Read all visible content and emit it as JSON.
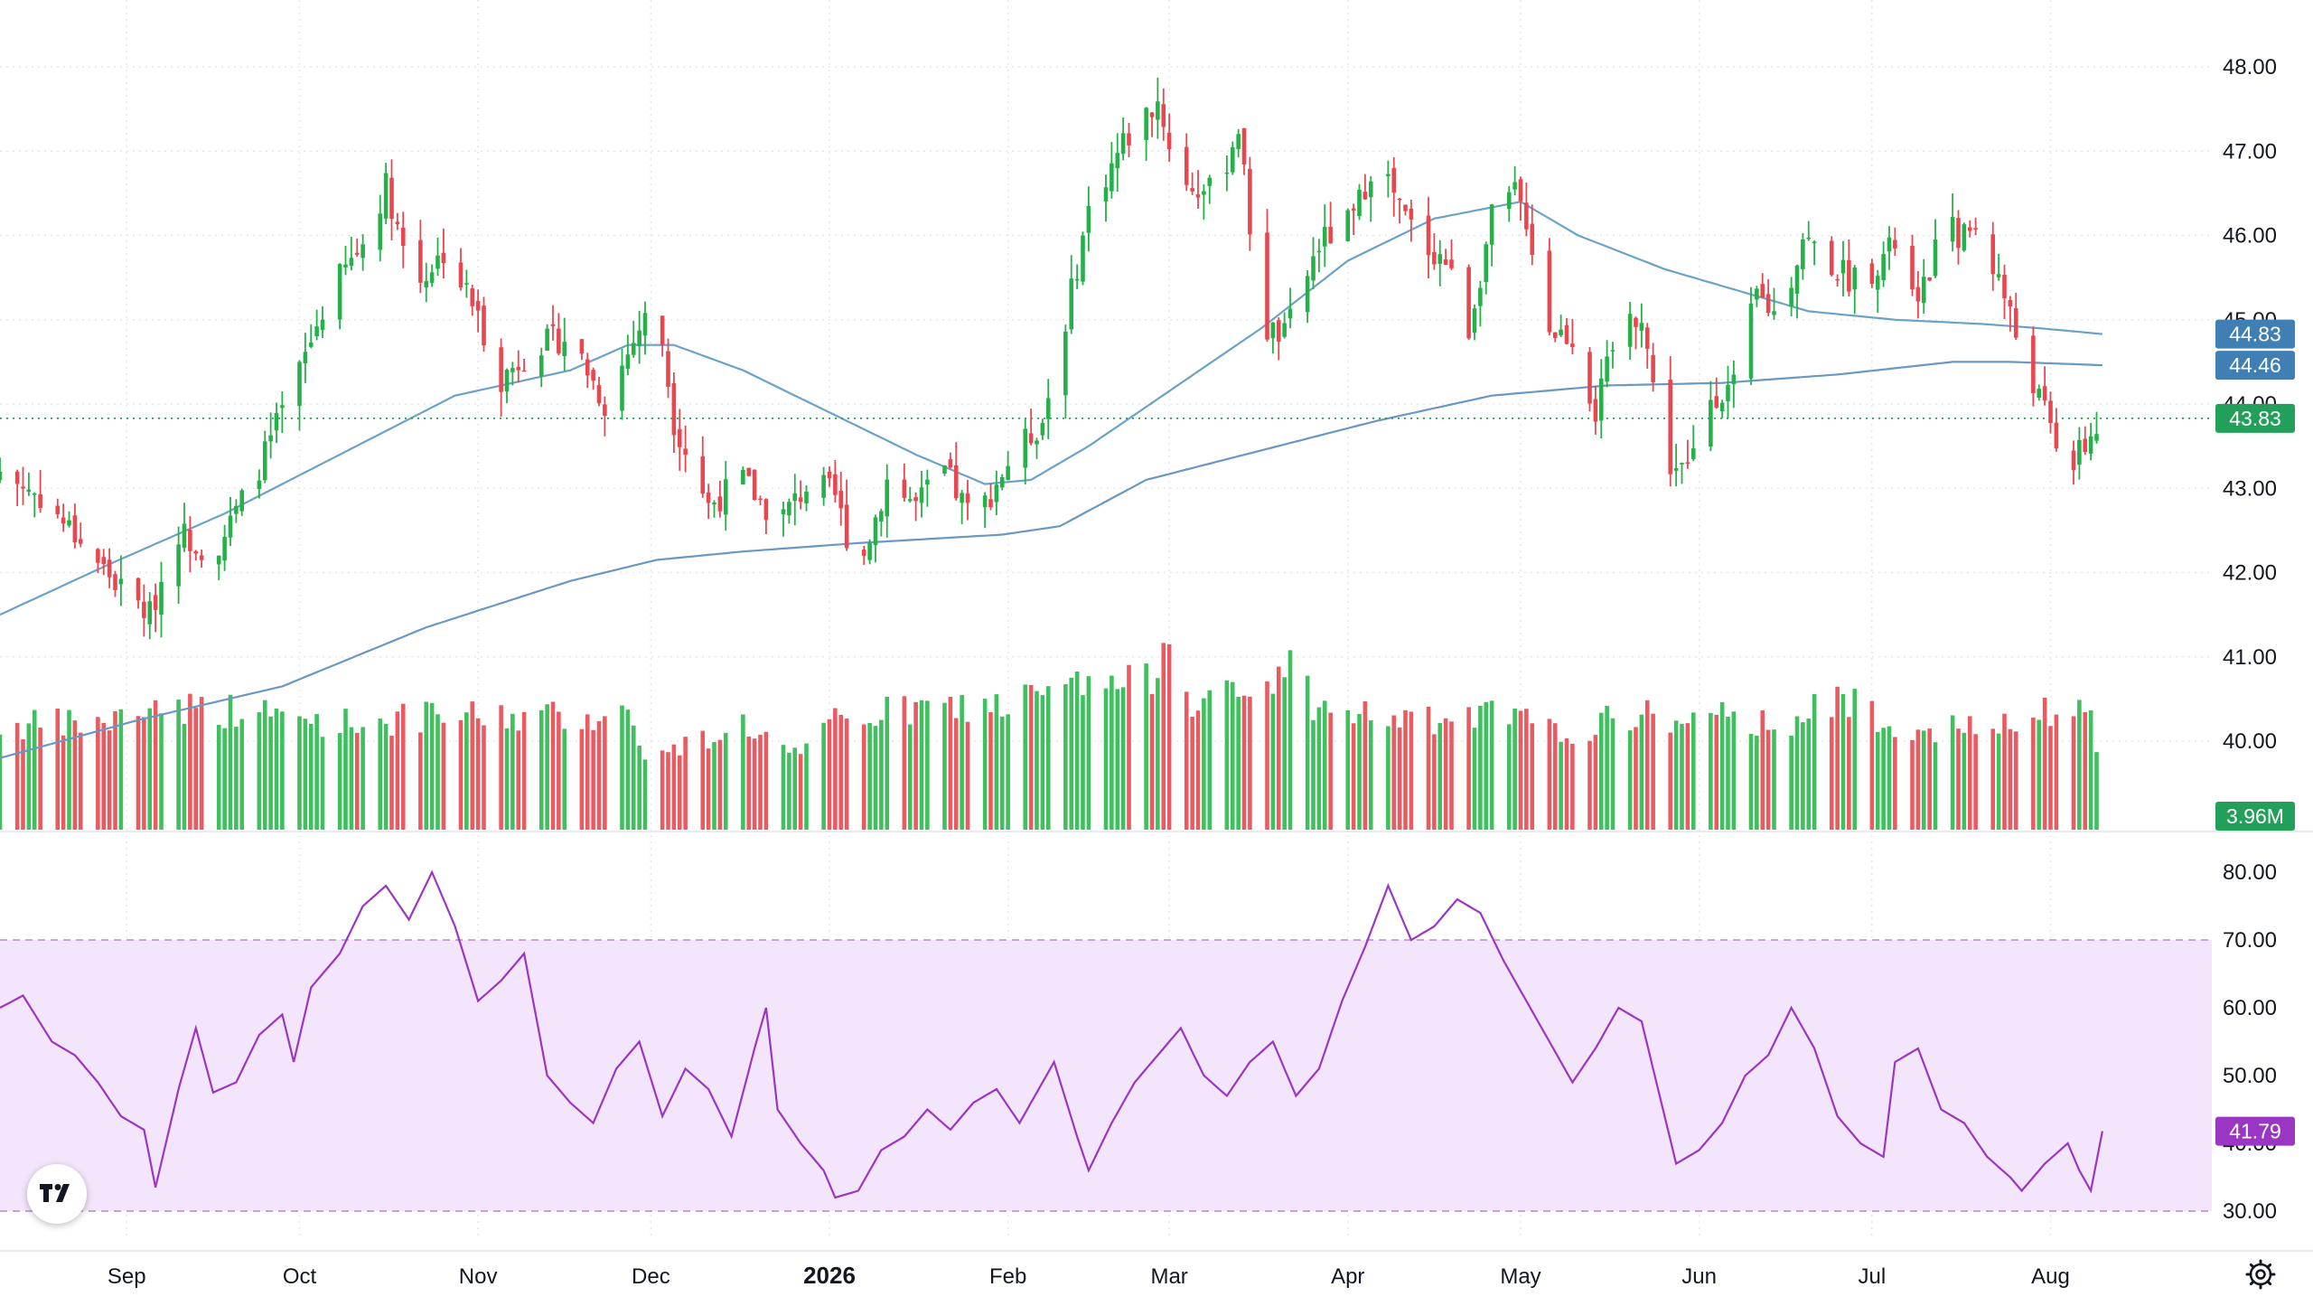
{
  "colors": {
    "up": "#26b04a",
    "down": "#e8474f",
    "ma_fast": "#6aa2c8",
    "ma_slow": "#6a98c2",
    "rsi_line": "#9b36c4",
    "rsi_band": "#f3e5fc",
    "last_price_badge": "#22a05a",
    "ma_fast_badge": "#3f7fb3",
    "ma_slow_badge": "#3f7fb3",
    "volume_badge": "#22a05a",
    "rsi_badge": "#9b36c4",
    "grid": "#e6e8ec"
  },
  "icons": {
    "logo": "tradingview-logo-icon",
    "settings": "settings-gear-icon"
  },
  "chart_data": {
    "type": "candlestick",
    "x_axis": {
      "labels": [
        {
          "text": "Sep",
          "day": 23
        },
        {
          "text": "Oct",
          "day": 53
        },
        {
          "text": "Nov",
          "day": 84
        },
        {
          "text": "Dec",
          "day": 114
        },
        {
          "text": "2026",
          "day": 145,
          "bold": true
        },
        {
          "text": "Feb",
          "day": 176
        },
        {
          "text": "Mar",
          "day": 204
        },
        {
          "text": "Apr",
          "day": 235
        },
        {
          "text": "May",
          "day": 265
        },
        {
          "text": "Jun",
          "day": 296
        },
        {
          "text": "Jul",
          "day": 326
        },
        {
          "text": "Aug",
          "day": 357
        }
      ],
      "day_range": [
        1,
        385
      ]
    },
    "price_pane": {
      "y_ticks": [
        "48.00",
        "47.00",
        "46.00",
        "45.00",
        "44.00",
        "43.00",
        "42.00",
        "41.00",
        "40.00"
      ],
      "y_range": [
        39.0,
        48.0
      ],
      "last_price": "43.83",
      "ma_fast_value": "44.83",
      "ma_slow_value": "44.46",
      "close_anchors": [
        [
          1,
          43.2
        ],
        [
          8,
          42.9
        ],
        [
          16,
          42.3
        ],
        [
          22,
          41.8
        ],
        [
          27,
          41.5
        ],
        [
          32,
          42.5
        ],
        [
          38,
          42.2
        ],
        [
          45,
          43.1
        ],
        [
          52,
          44.2
        ],
        [
          58,
          45.3
        ],
        [
          64,
          45.9
        ],
        [
          68,
          46.6
        ],
        [
          73,
          45.4
        ],
        [
          78,
          45.8
        ],
        [
          83,
          45.2
        ],
        [
          88,
          44.3
        ],
        [
          94,
          44.7
        ],
        [
          100,
          44.8
        ],
        [
          106,
          44.0
        ],
        [
          112,
          44.9
        ],
        [
          115,
          45.2
        ],
        [
          118,
          43.8
        ],
        [
          124,
          42.8
        ],
        [
          130,
          43.1
        ],
        [
          136,
          42.6
        ],
        [
          142,
          43.1
        ],
        [
          146,
          42.9
        ],
        [
          150,
          42.0
        ],
        [
          155,
          43.1
        ],
        [
          160,
          42.8
        ],
        [
          165,
          43.2
        ],
        [
          170,
          42.6
        ],
        [
          176,
          43.3
        ],
        [
          182,
          43.8
        ],
        [
          186,
          45.0
        ],
        [
          190,
          46.3
        ],
        [
          196,
          47.1
        ],
        [
          202,
          47.6
        ],
        [
          206,
          46.6
        ],
        [
          212,
          46.5
        ],
        [
          216,
          47.3
        ],
        [
          220,
          44.9
        ],
        [
          224,
          44.8
        ],
        [
          230,
          45.9
        ],
        [
          236,
          46.2
        ],
        [
          240,
          47.0
        ],
        [
          244,
          46.3
        ],
        [
          248,
          45.9
        ],
        [
          252,
          45.7
        ],
        [
          256,
          44.9
        ],
        [
          260,
          46.2
        ],
        [
          264,
          46.5
        ],
        [
          266,
          46.2
        ],
        [
          270,
          44.9
        ],
        [
          274,
          44.8
        ],
        [
          278,
          43.9
        ],
        [
          282,
          44.9
        ],
        [
          286,
          45.1
        ],
        [
          290,
          43.3
        ],
        [
          294,
          43.2
        ],
        [
          298,
          44.1
        ],
        [
          302,
          44.2
        ],
        [
          306,
          45.3
        ],
        [
          310,
          45.0
        ],
        [
          314,
          46.0
        ],
        [
          318,
          45.7
        ],
        [
          322,
          45.5
        ],
        [
          326,
          45.6
        ],
        [
          330,
          45.9
        ],
        [
          334,
          45.1
        ],
        [
          338,
          46.1
        ],
        [
          342,
          46.0
        ],
        [
          344,
          46.1
        ],
        [
          348,
          45.5
        ],
        [
          352,
          44.6
        ],
        [
          356,
          43.9
        ],
        [
          360,
          43.2
        ],
        [
          363,
          43.5
        ],
        [
          366,
          43.83
        ]
      ],
      "ma_fast_anchors": [
        [
          1,
          41.5
        ],
        [
          20,
          42.1
        ],
        [
          40,
          42.7
        ],
        [
          60,
          43.4
        ],
        [
          80,
          44.1
        ],
        [
          100,
          44.4
        ],
        [
          110,
          44.7
        ],
        [
          118,
          44.7
        ],
        [
          130,
          44.4
        ],
        [
          145,
          43.9
        ],
        [
          160,
          43.4
        ],
        [
          172,
          43.05
        ],
        [
          180,
          43.1
        ],
        [
          190,
          43.5
        ],
        [
          205,
          44.2
        ],
        [
          220,
          44.9
        ],
        [
          235,
          45.7
        ],
        [
          250,
          46.2
        ],
        [
          265,
          46.4
        ],
        [
          275,
          46.0
        ],
        [
          290,
          45.6
        ],
        [
          300,
          45.4
        ],
        [
          315,
          45.1
        ],
        [
          330,
          45.0
        ],
        [
          345,
          44.95
        ],
        [
          355,
          44.9
        ],
        [
          366,
          44.83
        ]
      ],
      "ma_slow_anchors": [
        [
          1,
          39.8
        ],
        [
          25,
          40.25
        ],
        [
          50,
          40.65
        ],
        [
          75,
          41.35
        ],
        [
          100,
          41.9
        ],
        [
          115,
          42.15
        ],
        [
          130,
          42.25
        ],
        [
          150,
          42.35
        ],
        [
          175,
          42.45
        ],
        [
          185,
          42.55
        ],
        [
          200,
          43.1
        ],
        [
          220,
          43.45
        ],
        [
          240,
          43.8
        ],
        [
          260,
          44.1
        ],
        [
          280,
          44.22
        ],
        [
          300,
          44.25
        ],
        [
          320,
          44.35
        ],
        [
          340,
          44.5
        ],
        [
          350,
          44.5
        ],
        [
          366,
          44.46
        ]
      ]
    },
    "volume_pane": {
      "last_volume": "3.96M",
      "volume_anchors": [
        [
          1,
          0.82
        ],
        [
          20,
          0.85
        ],
        [
          28,
          1.0
        ],
        [
          40,
          0.95
        ],
        [
          60,
          0.85
        ],
        [
          80,
          0.9
        ],
        [
          100,
          0.9
        ],
        [
          110,
          0.92
        ],
        [
          114,
          0.55
        ],
        [
          130,
          0.85
        ],
        [
          140,
          0.55
        ],
        [
          146,
          0.88
        ],
        [
          160,
          0.95
        ],
        [
          176,
          1.0
        ],
        [
          190,
          1.15
        ],
        [
          200,
          1.15
        ],
        [
          204,
          1.6
        ],
        [
          208,
          1.05
        ],
        [
          220,
          1.05
        ],
        [
          224,
          1.38
        ],
        [
          230,
          0.95
        ],
        [
          240,
          0.9
        ],
        [
          250,
          0.85
        ],
        [
          262,
          0.92
        ],
        [
          272,
          0.75
        ],
        [
          285,
          0.92
        ],
        [
          295,
          0.85
        ],
        [
          300,
          0.88
        ],
        [
          310,
          0.85
        ],
        [
          322,
          1.03
        ],
        [
          330,
          0.85
        ],
        [
          340,
          0.8
        ],
        [
          350,
          0.8
        ],
        [
          358,
          0.95
        ],
        [
          364,
          0.95
        ],
        [
          366,
          0.25
        ]
      ],
      "range_max": 1.6
    },
    "rsi_pane": {
      "y_ticks": [
        "80.00",
        "70.00",
        "60.00",
        "50.00",
        "40.00",
        "30.00"
      ],
      "y_range": [
        30,
        80
      ],
      "upper_band": 70,
      "lower_band": 30,
      "last_value": "41.79",
      "rsi_anchors": [
        [
          1,
          60.0
        ],
        [
          5,
          61.8
        ],
        [
          10,
          55.0
        ],
        [
          14,
          53.0
        ],
        [
          18,
          49.0
        ],
        [
          22,
          44.0
        ],
        [
          26,
          42.0
        ],
        [
          28,
          33.5
        ],
        [
          32,
          48.0
        ],
        [
          35,
          57.0
        ],
        [
          38,
          47.5
        ],
        [
          42,
          49.0
        ],
        [
          46,
          56.0
        ],
        [
          50,
          59.0
        ],
        [
          52,
          52.0
        ],
        [
          55,
          63.0
        ],
        [
          60,
          68.0
        ],
        [
          64,
          75.0
        ],
        [
          68,
          78.0
        ],
        [
          72,
          73.0
        ],
        [
          76,
          80.0
        ],
        [
          80,
          72.0
        ],
        [
          84,
          61.0
        ],
        [
          88,
          64.0
        ],
        [
          92,
          68.0
        ],
        [
          96,
          50.0
        ],
        [
          100,
          46.0
        ],
        [
          104,
          43.0
        ],
        [
          108,
          51.0
        ],
        [
          112,
          55.0
        ],
        [
          116,
          44.0
        ],
        [
          120,
          51.0
        ],
        [
          124,
          48.0
        ],
        [
          128,
          41.0
        ],
        [
          132,
          54.0
        ],
        [
          134,
          60.0
        ],
        [
          136,
          45.0
        ],
        [
          140,
          40.0
        ],
        [
          144,
          36.0
        ],
        [
          146,
          32.0
        ],
        [
          150,
          33.0
        ],
        [
          154,
          39.0
        ],
        [
          158,
          41.0
        ],
        [
          162,
          45.0
        ],
        [
          166,
          42.0
        ],
        [
          170,
          46.0
        ],
        [
          174,
          48.0
        ],
        [
          178,
          43.0
        ],
        [
          182,
          49.0
        ],
        [
          184,
          52.0
        ],
        [
          188,
          41.0
        ],
        [
          190,
          36.0
        ],
        [
          194,
          43.0
        ],
        [
          198,
          49.0
        ],
        [
          202,
          53.0
        ],
        [
          206,
          57.0
        ],
        [
          210,
          50.0
        ],
        [
          214,
          47.0
        ],
        [
          218,
          52.0
        ],
        [
          222,
          55.0
        ],
        [
          226,
          47.0
        ],
        [
          230,
          51.0
        ],
        [
          234,
          61.0
        ],
        [
          238,
          69.0
        ],
        [
          242,
          78.0
        ],
        [
          246,
          70.0
        ],
        [
          250,
          72.0
        ],
        [
          254,
          76.0
        ],
        [
          258,
          74.0
        ],
        [
          262,
          67.0
        ],
        [
          266,
          61.0
        ],
        [
          270,
          55.0
        ],
        [
          274,
          49.0
        ],
        [
          278,
          54.0
        ],
        [
          282,
          60.0
        ],
        [
          286,
          58.0
        ],
        [
          290,
          44.0
        ],
        [
          292,
          37.0
        ],
        [
          296,
          39.0
        ],
        [
          300,
          43.0
        ],
        [
          304,
          50.0
        ],
        [
          308,
          53.0
        ],
        [
          312,
          60.0
        ],
        [
          316,
          54.0
        ],
        [
          320,
          44.0
        ],
        [
          324,
          40.0
        ],
        [
          328,
          38.0
        ],
        [
          330,
          52.0
        ],
        [
          334,
          54.0
        ],
        [
          338,
          45.0
        ],
        [
          342,
          43.0
        ],
        [
          346,
          38.0
        ],
        [
          350,
          35.0
        ],
        [
          352,
          33.0
        ],
        [
          356,
          37.0
        ],
        [
          360,
          40.0
        ],
        [
          362,
          36.0
        ],
        [
          364,
          33.0
        ],
        [
          366,
          41.79
        ]
      ]
    }
  }
}
